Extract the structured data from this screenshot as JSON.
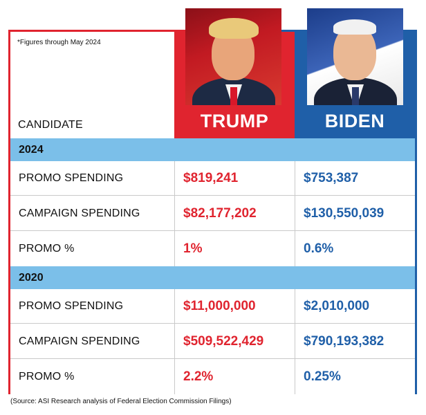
{
  "note": "*Figures through May 2024",
  "header": {
    "candidate_label": "CANDIDATE",
    "trump_name": "TRUMP",
    "biden_name": "BIDEN"
  },
  "sections": [
    {
      "year": "2024",
      "rows": [
        {
          "label": "PROMO SPENDING",
          "trump": "$819,241",
          "biden": "$753,387"
        },
        {
          "label": "CAMPAIGN SPENDING",
          "trump": "$82,177,202",
          "biden": "$130,550,039"
        },
        {
          "label": "PROMO %",
          "trump": "1%",
          "biden": "0.6%"
        }
      ]
    },
    {
      "year": "2020",
      "rows": [
        {
          "label": "PROMO SPENDING",
          "trump": "$11,000,000",
          "biden": "$2,010,000"
        },
        {
          "label": "CAMPAIGN SPENDING",
          "trump": "$509,522,429",
          "biden": "$790,193,382"
        },
        {
          "label": "PROMO %",
          "trump": "2.2%",
          "biden": "0.25%"
        }
      ]
    }
  ],
  "source": "(Source: ASI Research analysis of Federal Election Commission Filings)",
  "colors": {
    "trump_red": "#e0242f",
    "biden_blue": "#1f5fa8",
    "section_band": "#7bbfe9"
  },
  "icons": {
    "trump_photo": "trump-portrait",
    "biden_photo": "biden-portrait"
  }
}
